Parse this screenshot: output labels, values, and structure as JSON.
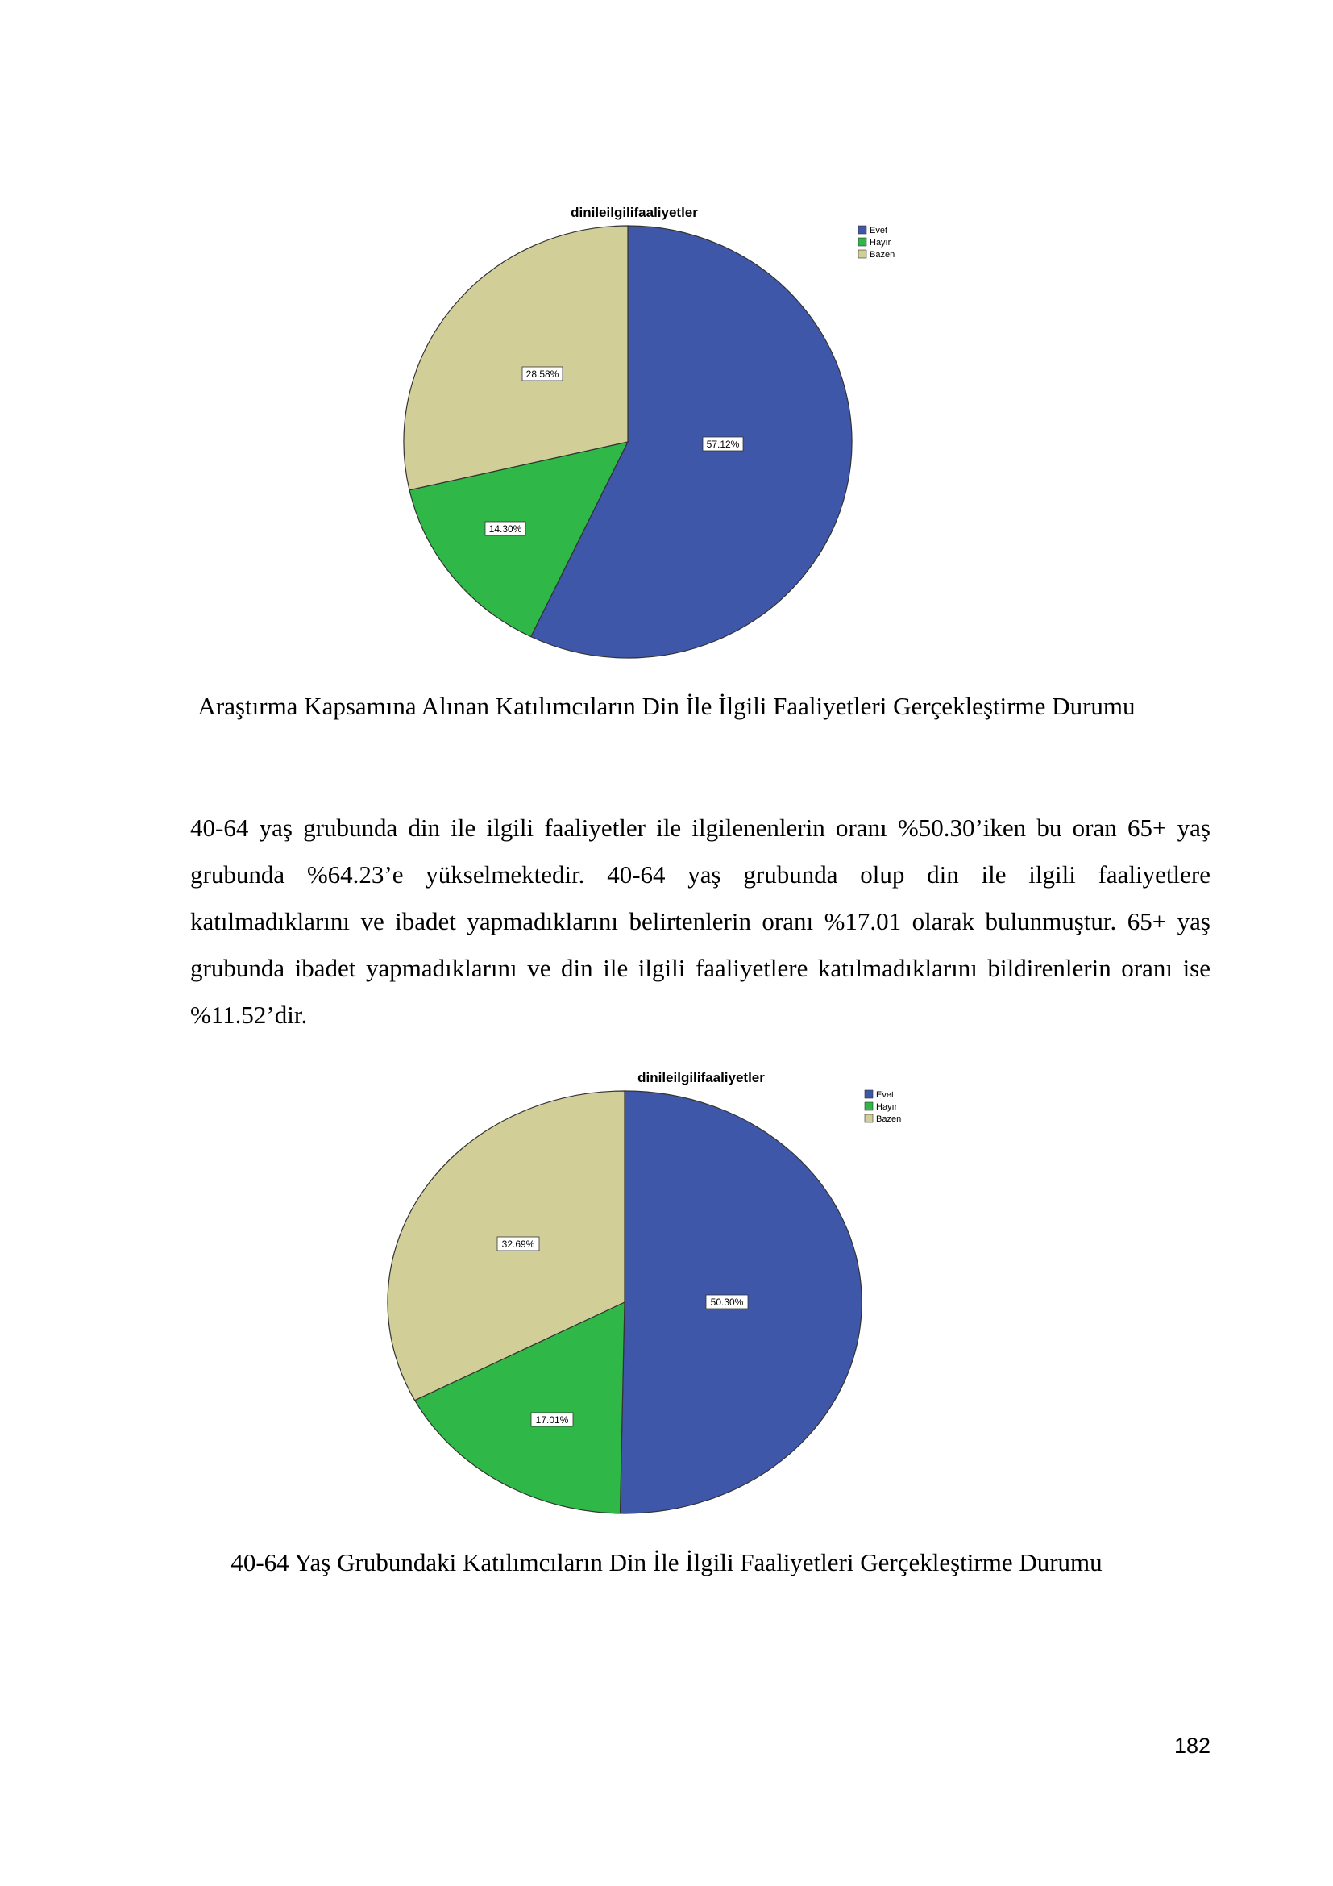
{
  "charts": [
    {
      "title": "dinileilgilifaaliyetler",
      "legend": [
        "Evet",
        "Hayır",
        "Bazen"
      ],
      "slice_labels": [
        "57.12%",
        "14.30%",
        "28.58%"
      ],
      "caption": "Araştırma Kapsamına Alınan Katılımcıların Din İle İlgili Faaliyetleri Gerçekleştirme Durumu"
    },
    {
      "title": "dinileilgilifaaliyetler",
      "legend": [
        "Evet",
        "Hayır",
        "Bazen"
      ],
      "slice_labels": [
        "50.30%",
        "17.01%",
        "32.69%"
      ],
      "caption": "40-64 Yaş Grubundaki Katılımcıların Din İle İlgili Faaliyetleri Gerçekleştirme Durumu"
    }
  ],
  "colors": {
    "Evet": "#3f57a8",
    "Hayır": "#2fb848",
    "Bazen": "#d2ce97"
  },
  "chart_data": [
    {
      "type": "pie",
      "title": "dinileilgilifaaliyetler",
      "categories": [
        "Evet",
        "Hayır",
        "Bazen"
      ],
      "values": [
        57.12,
        14.3,
        28.58
      ]
    },
    {
      "type": "pie",
      "title": "dinileilgilifaaliyetler",
      "categories": [
        "Evet",
        "Hayır",
        "Bazen"
      ],
      "values": [
        50.3,
        17.01,
        32.69
      ]
    }
  ],
  "paragraph": "40-64 yaş grubunda din ile ilgili faaliyetler ile ilgilenenlerin oranı %50.30’iken bu oran 65+ yaş grubunda %64.23’e yükselmektedir.  40-64 yaş grubunda olup din ile ilgili faaliyetlere katılmadıklarını ve ibadet yapmadıklarını belirtenlerin oranı %17.01 olarak bulunmuştur. 65+ yaş grubunda ibadet yapmadıklarını ve din ile ilgili faaliyetlere katılmadıklarını bildirenlerin oranı ise %11.52’dir.",
  "page_number": "182"
}
